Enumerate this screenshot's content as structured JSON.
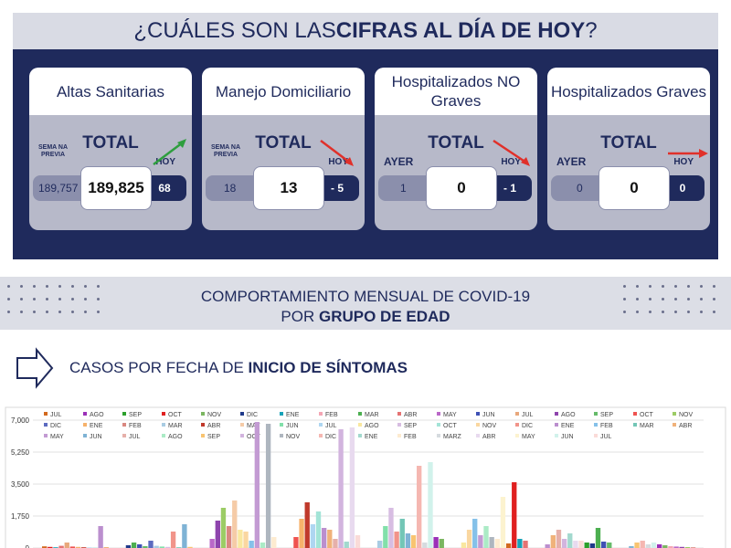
{
  "banner": {
    "pre": "¿CUÁLES SON LAS ",
    "bold": "CIFRAS AL DÍA DE HOY",
    "post": "?"
  },
  "cards": [
    {
      "title": "Altas Sanitarias",
      "total_label": "TOTAL",
      "prev_label": "SEMA NA PREVIA",
      "prev": "189,757",
      "total": "189,825",
      "hoy_label": "HOY",
      "hoy": "68",
      "trend": "up"
    },
    {
      "title": "Manejo Domiciliario",
      "total_label": "TOTAL",
      "prev_label": "SEMA NA PREVIA",
      "prev": "18",
      "total": "13",
      "hoy_label": "HOY",
      "hoy": "- 5",
      "trend": "down"
    },
    {
      "title": "Hospitalizados NO Graves",
      "total_label": "TOTAL",
      "prev_label": "AYER",
      "prev": "1",
      "total": "0",
      "hoy_label": "HOY",
      "hoy": "- 1",
      "trend": "down"
    },
    {
      "title": "Hospitalizados Graves",
      "total_label": "TOTAL",
      "prev_label": "AYER",
      "prev": "0",
      "total": "0",
      "hoy_label": "HOY",
      "hoy": "0",
      "trend": "flat"
    }
  ],
  "section": {
    "line1": "COMPORTAMIENTO MENSUAL DE COVID-19",
    "line2_pre": "POR ",
    "line2_bold": "GRUPO DE EDAD"
  },
  "subheading": {
    "pre": "CASOS POR FECHA DE ",
    "bold": "INICIO DE SÍNTOMAS"
  },
  "colors": {
    "navy": "#1f2a5c",
    "green": "#2e9e3e",
    "red": "#e0302a"
  },
  "chart_data": {
    "type": "bar",
    "yticks": [
      "0",
      "1,750",
      "3,500",
      "5,250",
      "7,000"
    ],
    "ylim": [
      0,
      7000
    ],
    "legend_rows": [
      [
        "JUL",
        "AGO",
        "SEP",
        "OCT",
        "NOV",
        "DIC",
        "ENE",
        "FEB",
        "MAR",
        "ABR",
        "MAY",
        "JUN",
        "JUL",
        "AGO",
        "SEP",
        "OCT",
        "NOV"
      ],
      [
        "DIC",
        "ENE",
        "FEB",
        "MAR",
        "ABR",
        "MAY",
        "JUN",
        "JUL",
        "AGO",
        "SEP",
        "OCT",
        "NOV",
        "DIC",
        "ENE",
        "FEB",
        "MAR",
        "ABR"
      ],
      [
        "MAY",
        "JUN",
        "JUL",
        "AGO",
        "SEP",
        "OCT",
        "NOV",
        "DIC",
        "ENE",
        "FEB",
        "MARZ",
        "ABR",
        "MAY",
        "JUN",
        "JUL"
      ]
    ],
    "legend_colors": [
      "#d2691e",
      "#9b30b8",
      "#2ca02c",
      "#e02020",
      "#7bb661",
      "#1f3a8a",
      "#17a2b8",
      "#f4a6b4",
      "#4caf50",
      "#e57373",
      "#ba68c8",
      "#3f51b5",
      "#e8a87c",
      "#8e44ad",
      "#66bb6a",
      "#ef5350",
      "#9ccc65",
      "#5c6bc0",
      "#f6b26b",
      "#d98880",
      "#a9cce3",
      "#c0392b",
      "#f5cba7",
      "#82e0aa",
      "#aed6f1",
      "#f9e79f",
      "#d7bde2",
      "#a3e4d7",
      "#fad7a0",
      "#f1948a",
      "#bb8fce",
      "#85c1e9",
      "#73c6b6",
      "#f0b27a",
      "#c39bd3",
      "#7fb3d5",
      "#e6b0aa",
      "#abebc6",
      "#f8c471",
      "#d2b4de",
      "#aeb6bf",
      "#f5b7b1",
      "#a2d9ce",
      "#fdebd0",
      "#d6dbdf",
      "#e8daef",
      "#fcf3cf",
      "#d1f2eb",
      "#fadbd8"
    ],
    "groups": [
      [
        90,
        60,
        40,
        120,
        300,
        80,
        60,
        40,
        30,
        20,
        1200,
        50
      ],
      [
        150,
        300,
        200,
        100,
        400,
        120,
        80,
        60,
        900,
        40,
        1300,
        60
      ],
      [
        500,
        1500,
        2200,
        1200,
        2600,
        1000,
        900,
        400,
        6900,
        300,
        6800,
        600
      ],
      [
        600,
        1600,
        2500,
        1300,
        2000,
        1100,
        1000,
        500,
        6500,
        350,
        6600,
        700
      ],
      [
        400,
        1200,
        2200,
        900,
        1600,
        800,
        700,
        4500,
        300,
        4700,
        600,
        500
      ],
      [
        300,
        1000,
        1600,
        700,
        1200,
        600,
        500,
        2800,
        250,
        3600,
        500,
        400
      ],
      [
        200,
        700,
        1000,
        500,
        800,
        400,
        400,
        300,
        250,
        1100,
        350,
        300
      ],
      [
        100,
        300,
        400,
        200,
        300,
        200,
        150,
        100,
        80,
        60,
        50,
        40
      ]
    ]
  }
}
